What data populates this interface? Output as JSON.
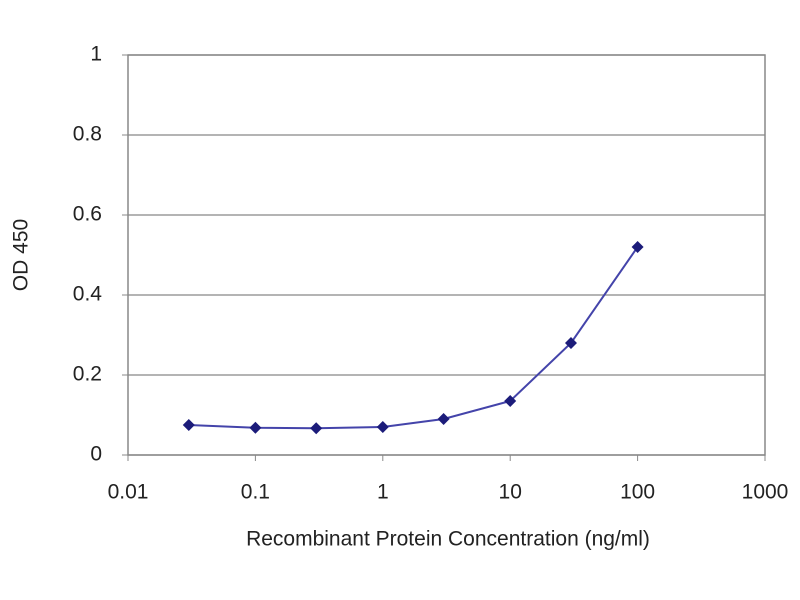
{
  "chart_data": {
    "type": "line",
    "xlabel": "Recombinant Protein Concentration (ng/ml)",
    "ylabel": "OD 450",
    "x": [
      0.03,
      0.1,
      0.3,
      1,
      3,
      10,
      30,
      100
    ],
    "series": [
      {
        "color": "#1c1c7a",
        "values": [
          0.075,
          0.068,
          0.067,
          0.07,
          0.09,
          0.135,
          0.28,
          0.52
        ]
      }
    ],
    "xscale": "log",
    "xlim": [
      0.01,
      1000
    ],
    "xticks": [
      0.01,
      0.1,
      1,
      10,
      100,
      1000
    ],
    "ylim": [
      0,
      1
    ],
    "yticks": [
      0,
      0.2,
      0.4,
      0.6,
      0.8,
      1
    ],
    "grid": true
  }
}
